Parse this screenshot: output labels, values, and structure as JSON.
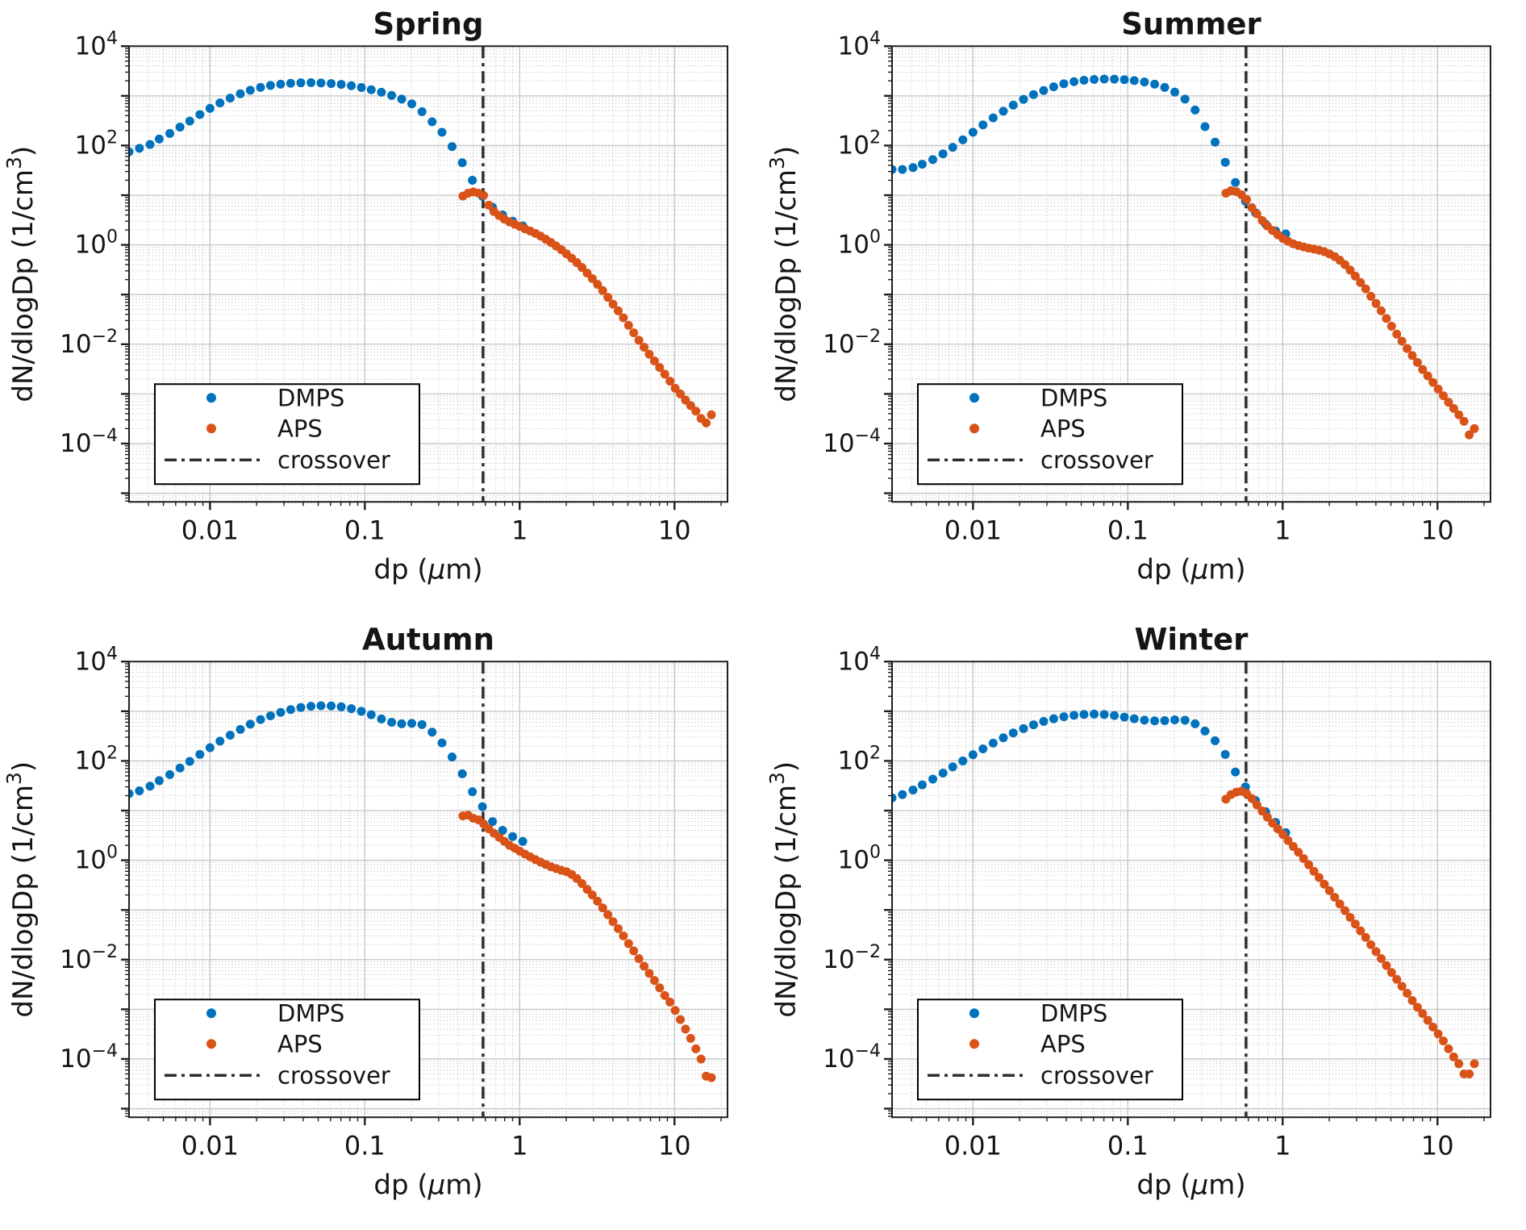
{
  "figure": {
    "background": "#ffffff",
    "colors": {
      "dmps": "#0072BD",
      "aps": "#D95319",
      "crossover_line": "#2D2D2D",
      "axis": "#1F1F1F",
      "grid_major": "#C4C4C4",
      "grid_minor": "#CCCCCC",
      "text": "#151515"
    },
    "legend": {
      "position": "lower-left",
      "entries": [
        {
          "label": "DMPS",
          "marker": "dot",
          "color": "#0072BD"
        },
        {
          "label": "APS",
          "marker": "dot",
          "color": "#D95319"
        },
        {
          "label": "crossover",
          "marker": "dashdot-line",
          "color": "#2D2D2D"
        }
      ]
    }
  },
  "chart_data": [
    {
      "type": "scatter",
      "title": "Spring",
      "xlabel": "dp (μm)",
      "ylabel": "dN/dlogDp (1/cm³)",
      "xscale": "log",
      "yscale": "log",
      "xlim": [
        0.003,
        22
      ],
      "ylim": [
        6.7e-06,
        10000
      ],
      "xticks": {
        "values": [
          0.01,
          0.1,
          1,
          10
        ],
        "labels": [
          "0.01",
          "0.1",
          "1",
          "10"
        ]
      },
      "yticks_exponents": [
        4,
        2,
        0,
        -2,
        -4
      ],
      "grid": true,
      "crossover_x": 0.58,
      "series": [
        {
          "name": "DMPS",
          "color": "#0072BD",
          "x": [
            0.003,
            0.0035,
            0.0041,
            0.0047,
            0.0055,
            0.0064,
            0.0074,
            0.0086,
            0.01,
            0.0116,
            0.0135,
            0.0157,
            0.0182,
            0.0212,
            0.0246,
            0.0286,
            0.0332,
            0.0386,
            0.0449,
            0.0521,
            0.0606,
            0.0704,
            0.0818,
            0.095,
            0.11,
            0.128,
            0.149,
            0.173,
            0.201,
            0.234,
            0.272,
            0.315,
            0.366,
            0.426,
            0.495,
            0.575,
            0.668,
            0.776,
            0.901,
            1.047
          ],
          "y": [
            75,
            88,
            105,
            135,
            175,
            235,
            310,
            420,
            560,
            720,
            900,
            1100,
            1300,
            1480,
            1620,
            1720,
            1790,
            1830,
            1840,
            1820,
            1770,
            1700,
            1600,
            1470,
            1330,
            1180,
            1020,
            860,
            690,
            480,
            300,
            185,
            95,
            45,
            20,
            9.5,
            5.7,
            4,
            3,
            2.4
          ]
        },
        {
          "name": "APS",
          "color": "#D95319",
          "x": [
            0.43,
            0.464,
            0.502,
            0.542,
            0.585,
            0.632,
            0.682,
            0.737,
            0.796,
            0.86,
            0.929,
            1.003,
            1.083,
            1.17,
            1.264,
            1.365,
            1.474,
            1.592,
            1.719,
            1.857,
            2.005,
            2.166,
            2.339,
            2.526,
            2.728,
            2.946,
            3.182,
            3.437,
            3.712,
            4.009,
            4.33,
            4.676,
            5.05,
            5.454,
            5.89,
            6.362,
            6.871,
            7.42,
            8.014,
            8.655,
            9.348,
            10.1,
            10.91,
            11.78,
            12.72,
            13.74,
            14.84,
            16.03,
            17.31
          ],
          "y": [
            9.6,
            11,
            11.6,
            11,
            9.9,
            6.3,
            4.7,
            3.9,
            3.3,
            2.9,
            2.6,
            2.35,
            2.1,
            1.9,
            1.7,
            1.5,
            1.3,
            1.12,
            0.95,
            0.8,
            0.66,
            0.54,
            0.44,
            0.35,
            0.27,
            0.21,
            0.16,
            0.12,
            0.088,
            0.064,
            0.047,
            0.034,
            0.024,
            0.017,
            0.012,
            0.0087,
            0.0063,
            0.0046,
            0.0034,
            0.0025,
            0.0018,
            0.0013,
            0.001,
            0.00075,
            0.00058,
            0.00045,
            0.00032,
            0.00026,
            0.00038
          ]
        }
      ]
    },
    {
      "type": "scatter",
      "title": "Summer",
      "xlabel": "dp (μm)",
      "ylabel": "dN/dlogDp (1/cm³)",
      "xscale": "log",
      "yscale": "log",
      "xlim": [
        0.003,
        22
      ],
      "ylim": [
        6.7e-06,
        10000
      ],
      "xticks": {
        "values": [
          0.01,
          0.1,
          1,
          10
        ],
        "labels": [
          "0.01",
          "0.1",
          "1",
          "10"
        ]
      },
      "yticks_exponents": [
        4,
        2,
        0,
        -2,
        -4
      ],
      "grid": true,
      "crossover_x": 0.58,
      "series": [
        {
          "name": "DMPS",
          "color": "#0072BD",
          "x": [
            0.003,
            0.0035,
            0.0041,
            0.0047,
            0.0055,
            0.0064,
            0.0074,
            0.0086,
            0.01,
            0.0116,
            0.0135,
            0.0157,
            0.0182,
            0.0212,
            0.0246,
            0.0286,
            0.0332,
            0.0386,
            0.0449,
            0.0521,
            0.0606,
            0.0704,
            0.0818,
            0.095,
            0.11,
            0.128,
            0.149,
            0.173,
            0.201,
            0.234,
            0.272,
            0.315,
            0.366,
            0.426,
            0.495,
            0.575,
            0.668,
            0.776,
            0.901,
            1.047
          ],
          "y": [
            33,
            33,
            36,
            42,
            52,
            68,
            92,
            130,
            185,
            260,
            360,
            490,
            650,
            850,
            1060,
            1280,
            1520,
            1750,
            1930,
            2060,
            2140,
            2180,
            2170,
            2120,
            2030,
            1900,
            1720,
            1480,
            1190,
            860,
            520,
            240,
            117,
            46,
            18,
            7.6,
            4.4,
            2.6,
            1.9,
            1.66
          ]
        },
        {
          "name": "APS",
          "color": "#D95319",
          "x": [
            0.43,
            0.464,
            0.502,
            0.542,
            0.585,
            0.632,
            0.682,
            0.737,
            0.796,
            0.86,
            0.929,
            1.003,
            1.083,
            1.17,
            1.264,
            1.365,
            1.474,
            1.592,
            1.719,
            1.857,
            2.005,
            2.166,
            2.339,
            2.526,
            2.728,
            2.946,
            3.182,
            3.437,
            3.712,
            4.009,
            4.33,
            4.676,
            5.05,
            5.454,
            5.89,
            6.362,
            6.871,
            7.42,
            8.014,
            8.655,
            9.348,
            10.1,
            10.91,
            11.78,
            12.72,
            13.74,
            14.84,
            16.03,
            17.31
          ],
          "y": [
            11,
            12.3,
            11.8,
            10.2,
            8.2,
            5.6,
            4.2,
            3.1,
            2.4,
            1.95,
            1.6,
            1.35,
            1.18,
            1.05,
            0.97,
            0.91,
            0.86,
            0.82,
            0.78,
            0.73,
            0.66,
            0.58,
            0.49,
            0.4,
            0.31,
            0.235,
            0.175,
            0.13,
            0.092,
            0.066,
            0.047,
            0.033,
            0.023,
            0.016,
            0.0115,
            0.0082,
            0.0059,
            0.0043,
            0.0031,
            0.0023,
            0.0017,
            0.00125,
            0.00092,
            0.00068,
            0.00051,
            0.00038,
            0.00028,
            0.00015,
            0.0002
          ]
        }
      ]
    },
    {
      "type": "scatter",
      "title": "Autumn",
      "xlabel": "dp (μm)",
      "ylabel": "dN/dlogDp (1/cm³)",
      "xscale": "log",
      "yscale": "log",
      "xlim": [
        0.003,
        22
      ],
      "ylim": [
        6.7e-06,
        10000
      ],
      "xticks": {
        "values": [
          0.01,
          0.1,
          1,
          10
        ],
        "labels": [
          "0.01",
          "0.1",
          "1",
          "10"
        ]
      },
      "yticks_exponents": [
        4,
        2,
        0,
        -2,
        -4
      ],
      "grid": true,
      "crossover_x": 0.58,
      "series": [
        {
          "name": "DMPS",
          "color": "#0072BD",
          "x": [
            0.003,
            0.0035,
            0.0041,
            0.0047,
            0.0055,
            0.0064,
            0.0074,
            0.0086,
            0.01,
            0.0116,
            0.0135,
            0.0157,
            0.0182,
            0.0212,
            0.0246,
            0.0286,
            0.0332,
            0.0386,
            0.0449,
            0.0521,
            0.0606,
            0.0704,
            0.0818,
            0.095,
            0.11,
            0.128,
            0.149,
            0.173,
            0.201,
            0.234,
            0.272,
            0.315,
            0.366,
            0.426,
            0.495,
            0.575,
            0.668,
            0.776,
            0.901,
            1.047
          ],
          "y": [
            22,
            25,
            31,
            40,
            53,
            72,
            98,
            135,
            185,
            250,
            330,
            430,
            550,
            680,
            810,
            950,
            1080,
            1190,
            1260,
            1290,
            1280,
            1230,
            1130,
            1000,
            850,
            700,
            600,
            560,
            570,
            540,
            380,
            230,
            120,
            55,
            24,
            12,
            6,
            4,
            3,
            2.4
          ]
        },
        {
          "name": "APS",
          "color": "#D95319",
          "x": [
            0.43,
            0.464,
            0.502,
            0.542,
            0.585,
            0.632,
            0.682,
            0.737,
            0.796,
            0.86,
            0.929,
            1.003,
            1.083,
            1.17,
            1.264,
            1.365,
            1.474,
            1.592,
            1.719,
            1.857,
            2.005,
            2.166,
            2.339,
            2.526,
            2.728,
            2.946,
            3.182,
            3.437,
            3.712,
            4.009,
            4.33,
            4.676,
            5.05,
            5.454,
            5.89,
            6.362,
            6.871,
            7.42,
            8.014,
            8.655,
            9.348,
            10.1,
            10.91,
            11.78,
            12.72,
            13.74,
            14.84,
            16.03,
            17.31
          ],
          "y": [
            7.8,
            8.1,
            7,
            6.5,
            5.4,
            4.3,
            3.5,
            2.9,
            2.4,
            2,
            1.75,
            1.52,
            1.33,
            1.17,
            1.03,
            0.92,
            0.82,
            0.74,
            0.68,
            0.63,
            0.59,
            0.52,
            0.43,
            0.34,
            0.26,
            0.2,
            0.15,
            0.11,
            0.08,
            0.058,
            0.042,
            0.03,
            0.021,
            0.015,
            0.0105,
            0.0074,
            0.0053,
            0.0038,
            0.0027,
            0.0019,
            0.0014,
            0.00095,
            0.00062,
            0.0004,
            0.00026,
            0.00016,
            0.0001,
            4.5e-05,
            4.2e-05
          ]
        }
      ]
    },
    {
      "type": "scatter",
      "title": "Winter",
      "xlabel": "dp (μm)",
      "ylabel": "dN/dlogDp (1/cm³)",
      "xscale": "log",
      "yscale": "log",
      "xlim": [
        0.003,
        22
      ],
      "ylim": [
        6.7e-06,
        10000
      ],
      "xticks": {
        "values": [
          0.01,
          0.1,
          1,
          10
        ],
        "labels": [
          "0.01",
          "0.1",
          "1",
          "10"
        ]
      },
      "yticks_exponents": [
        4,
        2,
        0,
        -2,
        -4
      ],
      "grid": true,
      "crossover_x": 0.58,
      "series": [
        {
          "name": "DMPS",
          "color": "#0072BD",
          "x": [
            0.003,
            0.0035,
            0.0041,
            0.0047,
            0.0055,
            0.0064,
            0.0074,
            0.0086,
            0.01,
            0.0116,
            0.0135,
            0.0157,
            0.0182,
            0.0212,
            0.0246,
            0.0286,
            0.0332,
            0.0386,
            0.0449,
            0.0521,
            0.0606,
            0.0704,
            0.0818,
            0.095,
            0.11,
            0.128,
            0.149,
            0.173,
            0.201,
            0.234,
            0.272,
            0.315,
            0.366,
            0.426,
            0.495,
            0.575,
            0.668,
            0.776,
            0.901,
            1.047
          ],
          "y": [
            18,
            21,
            26,
            33,
            43,
            57,
            76,
            100,
            133,
            175,
            228,
            292,
            365,
            448,
            535,
            625,
            705,
            775,
            830,
            865,
            875,
            860,
            820,
            762,
            706,
            662,
            640,
            648,
            672,
            660,
            560,
            400,
            255,
            135,
            60,
            30,
            16,
            9.5,
            5.8,
            3.6
          ]
        },
        {
          "name": "APS",
          "color": "#D95319",
          "x": [
            0.43,
            0.464,
            0.502,
            0.542,
            0.585,
            0.632,
            0.682,
            0.737,
            0.796,
            0.86,
            0.929,
            1.003,
            1.083,
            1.17,
            1.264,
            1.365,
            1.474,
            1.592,
            1.719,
            1.857,
            2.005,
            2.166,
            2.339,
            2.526,
            2.728,
            2.946,
            3.182,
            3.437,
            3.712,
            4.009,
            4.33,
            4.676,
            5.05,
            5.454,
            5.89,
            6.362,
            6.871,
            7.42,
            8.014,
            8.655,
            9.348,
            10.1,
            10.91,
            11.78,
            12.72,
            13.74,
            14.84,
            16.03,
            17.31
          ],
          "y": [
            17,
            21,
            23.5,
            24.5,
            22,
            17.5,
            13,
            9.8,
            7.4,
            5.6,
            4.3,
            3.3,
            2.5,
            1.9,
            1.45,
            1.08,
            0.81,
            0.6,
            0.45,
            0.33,
            0.245,
            0.18,
            0.132,
            0.097,
            0.071,
            0.052,
            0.038,
            0.028,
            0.02,
            0.0145,
            0.0105,
            0.0076,
            0.0055,
            0.004,
            0.0029,
            0.0021,
            0.0015,
            0.0011,
            0.00082,
            0.0006,
            0.00044,
            0.00032,
            0.00023,
            0.00016,
            0.00011,
            8e-05,
            5e-05,
            5e-05,
            8e-05
          ]
        }
      ]
    }
  ]
}
